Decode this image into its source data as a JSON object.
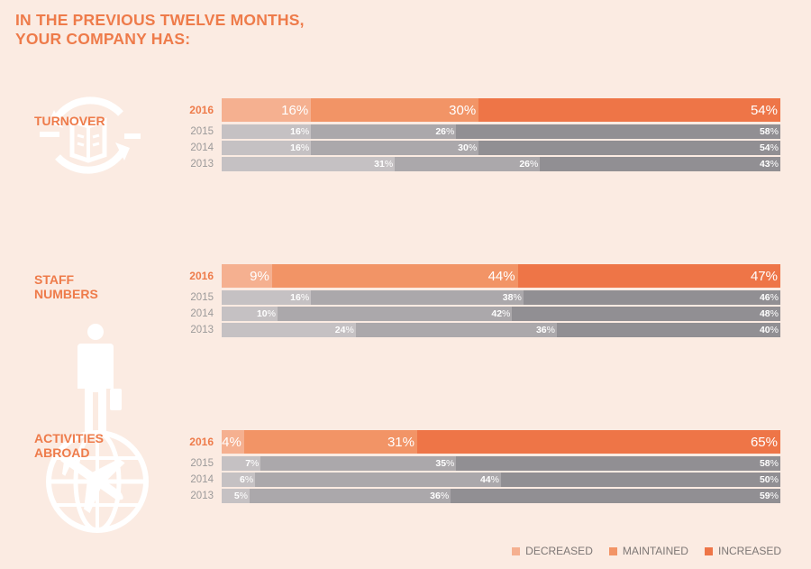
{
  "title": {
    "line1": "IN THE PREVIOUS TWELVE MONTHS,",
    "line2": "YOUR COMPANY HAS:"
  },
  "colors": {
    "decreased": "#f5b090",
    "maintained": "#f29466",
    "increased": "#ee7547",
    "history_light": "#c5c1c3",
    "history_mid": "#aba8ab",
    "history_dark": "#918f93",
    "accent": "#ee7b4a",
    "background": "#fbebe2"
  },
  "icons": [
    "circular-arrows-book-icon",
    "standing-person-with-briefcase-icon",
    "globe-airplane-icon"
  ],
  "legend": [
    {
      "label": "DECREASED",
      "key": "decreased"
    },
    {
      "label": "MAINTAINED",
      "key": "maintained"
    },
    {
      "label": "INCREASED",
      "key": "increased"
    }
  ],
  "chart_data": [
    {
      "type": "bar",
      "title": "TURNOVER",
      "title_lines": [
        "TURNOVER"
      ],
      "categories": [
        "2016",
        "2015",
        "2014",
        "2013"
      ],
      "stacked": true,
      "unit": "%",
      "series": [
        {
          "name": "DECREASED",
          "values": [
            16,
            16,
            16,
            31
          ]
        },
        {
          "name": "MAINTAINED",
          "values": [
            30,
            26,
            30,
            26
          ]
        },
        {
          "name": "INCREASED",
          "values": [
            54,
            58,
            54,
            43
          ]
        }
      ]
    },
    {
      "type": "bar",
      "title": "STAFF NUMBERS",
      "title_lines": [
        "STAFF",
        "NUMBERS"
      ],
      "categories": [
        "2016",
        "2015",
        "2014",
        "2013"
      ],
      "stacked": true,
      "unit": "%",
      "series": [
        {
          "name": "DECREASED",
          "values": [
            9,
            16,
            10,
            24
          ]
        },
        {
          "name": "MAINTAINED",
          "values": [
            44,
            38,
            42,
            36
          ]
        },
        {
          "name": "INCREASED",
          "values": [
            47,
            46,
            48,
            40
          ]
        }
      ]
    },
    {
      "type": "bar",
      "title": "ACTIVITIES ABROAD",
      "title_lines": [
        "ACTIVITIES",
        "ABROAD"
      ],
      "categories": [
        "2016",
        "2015",
        "2014",
        "2013"
      ],
      "stacked": true,
      "unit": "%",
      "series": [
        {
          "name": "DECREASED",
          "values": [
            4,
            7,
            6,
            5
          ]
        },
        {
          "name": "MAINTAINED",
          "values": [
            31,
            35,
            44,
            36
          ]
        },
        {
          "name": "INCREASED",
          "values": [
            65,
            58,
            50,
            59
          ]
        }
      ]
    }
  ]
}
